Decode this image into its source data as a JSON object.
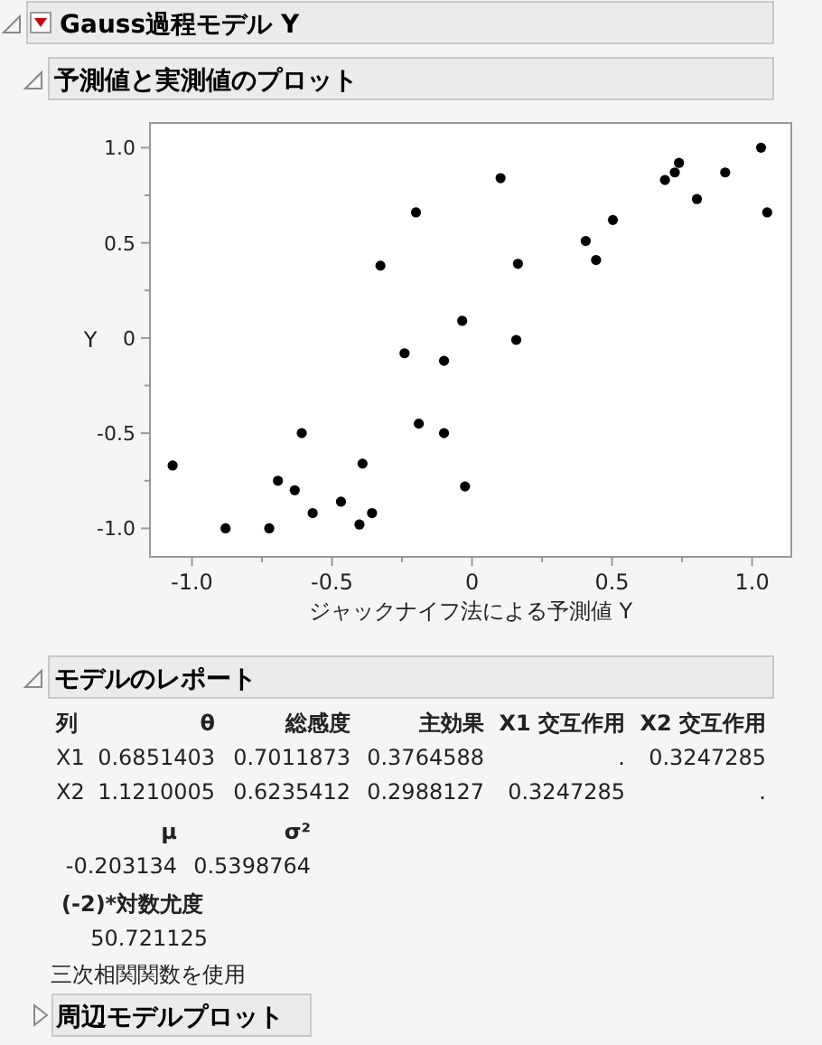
{
  "chart_data": [
    {
      "type": "scatter",
      "title": "Gauss過程モデル Y",
      "subtitle": "予測値と実測値のプロット",
      "xlabel": "ジャックナイフ法による予測値 Y",
      "ylabel": "Y",
      "color": "#000000",
      "marker": "circle",
      "grid": false,
      "x": [
        -1.069,
        -0.88,
        -0.724,
        -0.693,
        -0.633,
        -0.608,
        -0.569,
        -0.468,
        -0.402,
        -0.391,
        -0.357,
        -0.327,
        -0.241,
        -0.2,
        -0.19,
        -0.1,
        -0.1,
        -0.035,
        -0.025,
        0.102,
        0.158,
        0.164,
        0.406,
        0.443,
        0.503,
        0.689,
        0.724,
        0.739,
        0.803,
        0.904,
        1.032,
        1.054
      ],
      "values": [
        -0.67,
        -1.0,
        -1.0,
        -0.75,
        -0.8,
        -0.5,
        -0.92,
        -0.86,
        -0.98,
        -0.66,
        -0.92,
        0.38,
        -0.08,
        0.66,
        -0.45,
        -0.12,
        -0.5,
        0.09,
        -0.78,
        0.84,
        -0.01,
        0.39,
        0.51,
        0.41,
        0.62,
        0.83,
        0.87,
        0.92,
        0.73,
        0.87,
        1.0,
        0.66
      ],
      "xlim": [
        -1.15,
        1.14
      ],
      "ylim": [
        -1.15,
        1.13
      ],
      "xticks": [
        {
          "value": -1,
          "label": "-1.0"
        },
        {
          "value": -0.75,
          "label": null
        },
        {
          "value": -0.5,
          "label": "-0.5"
        },
        {
          "value": -0.25,
          "label": null
        },
        0,
        {
          "value": 0.25,
          "label": null
        },
        0.5,
        {
          "value": 0.75,
          "label": null
        },
        {
          "value": 1,
          "label": "1.0"
        }
      ],
      "yticks": [
        {
          "value": -1,
          "label": "-1.0"
        },
        {
          "value": -0.75,
          "label": null
        },
        {
          "value": -0.5,
          "label": "-0.5"
        },
        {
          "value": -0.25,
          "label": null
        },
        0,
        {
          "value": 0.25,
          "label": null
        },
        0.5,
        {
          "value": 0.75,
          "label": null
        },
        {
          "value": 1,
          "label": "1.0"
        }
      ]
    },
    {
      "type": "other",
      "title": "モデルのレポート",
      "annotations": [
        "列",
        "θ",
        "総感度",
        "主効果",
        "X1 交互作用",
        "X2 交互作用",
        "X1",
        "0.6851403",
        "0.7011873",
        "0.3764588",
        ".",
        "0.3247285",
        "X2",
        "1.1210005",
        "0.6235412",
        "0.2988127",
        "0.3247285",
        ".",
        "μ",
        "σ²",
        "-0.203134",
        "0.5398764",
        "(-2)*対数尤度",
        "50.721125",
        "三次相関関数を使用",
        "周辺モデルプロット"
      ]
    }
  ]
}
